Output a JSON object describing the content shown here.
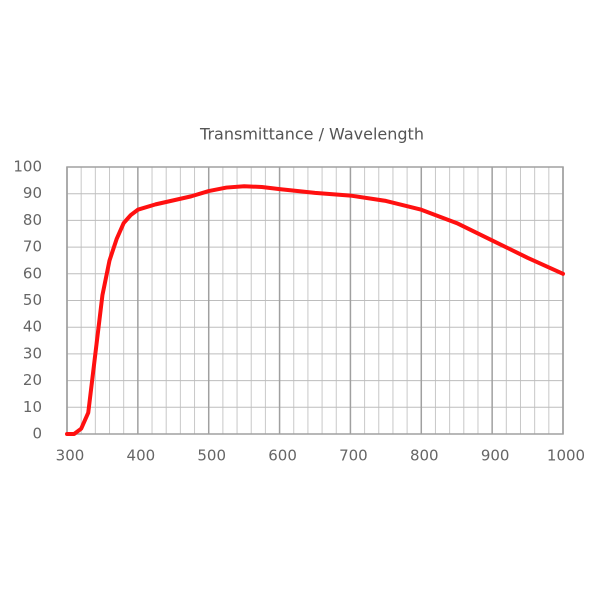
{
  "chart_data": {
    "type": "line",
    "title": "Transmittance / Wavelength",
    "x": [
      300,
      310,
      320,
      330,
      340,
      350,
      360,
      370,
      380,
      390,
      400,
      425,
      450,
      475,
      500,
      525,
      550,
      575,
      600,
      650,
      700,
      750,
      800,
      850,
      900,
      950,
      1000
    ],
    "series": [
      {
        "color": "#ff1010",
        "values": [
          0,
          0,
          2,
          8,
          30,
          52,
          65,
          73,
          79,
          82,
          84,
          86,
          87.5,
          89,
          91,
          92.3,
          92.8,
          92.5,
          91.7,
          90.3,
          89.3,
          87.3,
          84,
          79,
          72.5,
          66,
          60
        ]
      }
    ],
    "xlim": [
      300,
      1000
    ],
    "xticks": [
      300,
      400,
      500,
      600,
      700,
      800,
      900,
      1000
    ],
    "ylim": [
      0,
      100
    ],
    "yticks": [
      0,
      10,
      20,
      30,
      40,
      50,
      60,
      70,
      80,
      90,
      100
    ],
    "grid": true
  }
}
